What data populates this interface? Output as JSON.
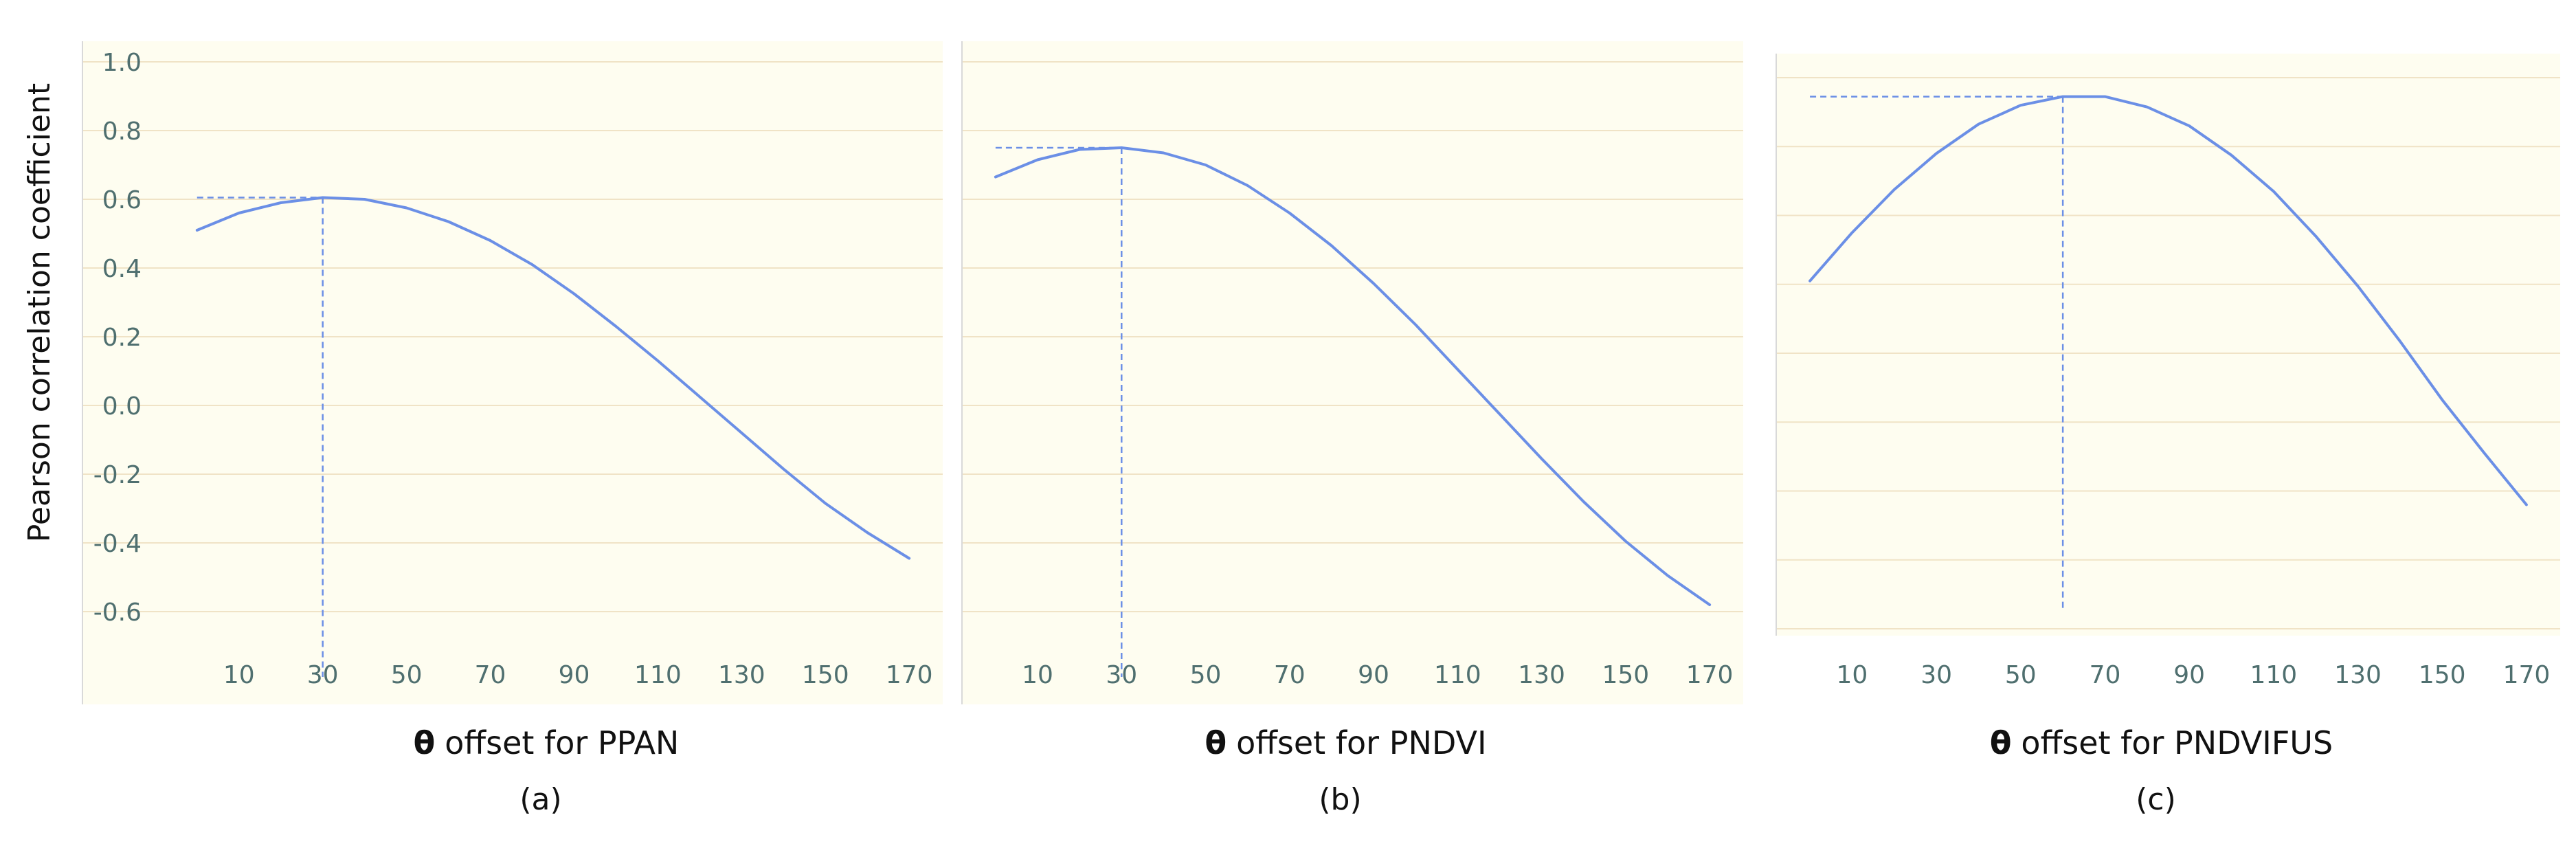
{
  "figure": {
    "y_axis_label": "Pearson correlation coefficient",
    "line_color": "#6b8fe6",
    "grid_color": "#f0e3c6",
    "background_color": "#fefdf0",
    "tick_color": "#4f6f6f"
  },
  "chart_data": [
    {
      "type": "line",
      "panel_caption": "(a)",
      "xlabel_symbol": "θ",
      "xlabel_text": "offset for PPAN",
      "ylabel": "Pearson correlation coefficient",
      "x": [
        0,
        10,
        20,
        30,
        40,
        50,
        60,
        70,
        80,
        90,
        100,
        110,
        120,
        130,
        140,
        150,
        160,
        170
      ],
      "series": [
        {
          "values": [
            0.51,
            0.56,
            0.59,
            0.605,
            0.6,
            0.575,
            0.535,
            0.48,
            0.41,
            0.325,
            0.23,
            0.13,
            0.025,
            -0.08,
            -0.185,
            -0.285,
            -0.37,
            -0.445
          ]
        }
      ],
      "peak": {
        "x": 30,
        "y": 0.605
      },
      "xticks": [
        10,
        30,
        50,
        70,
        90,
        110,
        130,
        150,
        170
      ],
      "yticks": [
        1.0,
        0.8,
        0.6,
        0.4,
        0.2,
        0.0,
        -0.2,
        -0.4,
        -0.6
      ],
      "yticklabels": [
        "1.0",
        "0.8",
        "0.6",
        "0.4",
        "0.2",
        "0.0",
        "-0.2",
        "-0.4",
        "-0.6"
      ],
      "xlim": [
        -8,
        178
      ],
      "ylim": [
        -0.7,
        1.04
      ],
      "grid": true
    },
    {
      "type": "line",
      "panel_caption": "(b)",
      "xlabel_symbol": "θ",
      "xlabel_text": "offset for PNDVI",
      "x": [
        0,
        10,
        20,
        30,
        40,
        50,
        60,
        70,
        80,
        90,
        100,
        110,
        120,
        130,
        140,
        150,
        160,
        170
      ],
      "series": [
        {
          "values": [
            0.665,
            0.715,
            0.745,
            0.75,
            0.735,
            0.7,
            0.64,
            0.56,
            0.465,
            0.355,
            0.235,
            0.105,
            -0.025,
            -0.155,
            -0.28,
            -0.395,
            -0.495,
            -0.58
          ]
        }
      ],
      "peak": {
        "x": 30,
        "y": 0.75
      },
      "xticks": [
        10,
        30,
        50,
        70,
        90,
        110,
        130,
        150,
        170
      ],
      "yticks": [
        1.0,
        0.8,
        0.6,
        0.4,
        0.2,
        0.0,
        -0.2,
        -0.4,
        -0.6
      ],
      "xlim": [
        -8,
        178
      ],
      "ylim": [
        -0.7,
        1.04
      ],
      "grid": true
    },
    {
      "type": "line",
      "panel_caption": "(c)",
      "xlabel_symbol": "θ",
      "xlabel_text": "offset for PNDVIFUS",
      "x": [
        0,
        10,
        20,
        30,
        40,
        50,
        60,
        70,
        80,
        90,
        100,
        110,
        120,
        130,
        140,
        150,
        160,
        170
      ],
      "series": [
        {
          "values": [
            0.41,
            0.55,
            0.675,
            0.78,
            0.865,
            0.92,
            0.945,
            0.945,
            0.915,
            0.86,
            0.775,
            0.67,
            0.54,
            0.395,
            0.235,
            0.065,
            -0.09,
            -0.24
          ]
        }
      ],
      "peak": {
        "x": 60,
        "y": 0.945
      },
      "xticks": [
        10,
        30,
        50,
        70,
        90,
        110,
        130,
        150,
        170
      ],
      "yticks": [
        1.0,
        0.8,
        0.6,
        0.4,
        0.2,
        0.0,
        -0.2,
        -0.4,
        -0.6
      ],
      "xlim": [
        -8,
        178
      ],
      "ylim": [
        -0.62,
        1.05
      ],
      "grid": true
    }
  ]
}
